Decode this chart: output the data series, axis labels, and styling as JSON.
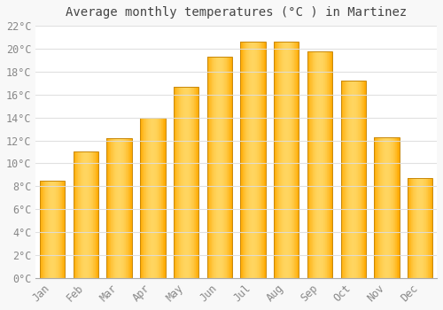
{
  "title": "Average monthly temperatures (°C ) in Martinez",
  "months": [
    "Jan",
    "Feb",
    "Mar",
    "Apr",
    "May",
    "Jun",
    "Jul",
    "Aug",
    "Sep",
    "Oct",
    "Nov",
    "Dec"
  ],
  "values": [
    8.5,
    11.0,
    12.2,
    14.0,
    16.7,
    19.3,
    20.6,
    20.6,
    19.8,
    17.2,
    12.3,
    8.7
  ],
  "bar_color_main": "#FFAA00",
  "bar_color_light": "#FFD060",
  "bar_edge_color": "#C8880A",
  "background_color": "#F8F8F8",
  "plot_bg_color": "#FFFFFF",
  "grid_color": "#DDDDDD",
  "tick_label_color": "#888888",
  "title_color": "#444444",
  "ylim": [
    0,
    22
  ],
  "yticks": [
    0,
    2,
    4,
    6,
    8,
    10,
    12,
    14,
    16,
    18,
    20,
    22
  ],
  "title_fontsize": 10,
  "tick_fontsize": 8.5,
  "font_family": "monospace",
  "bar_width": 0.75
}
